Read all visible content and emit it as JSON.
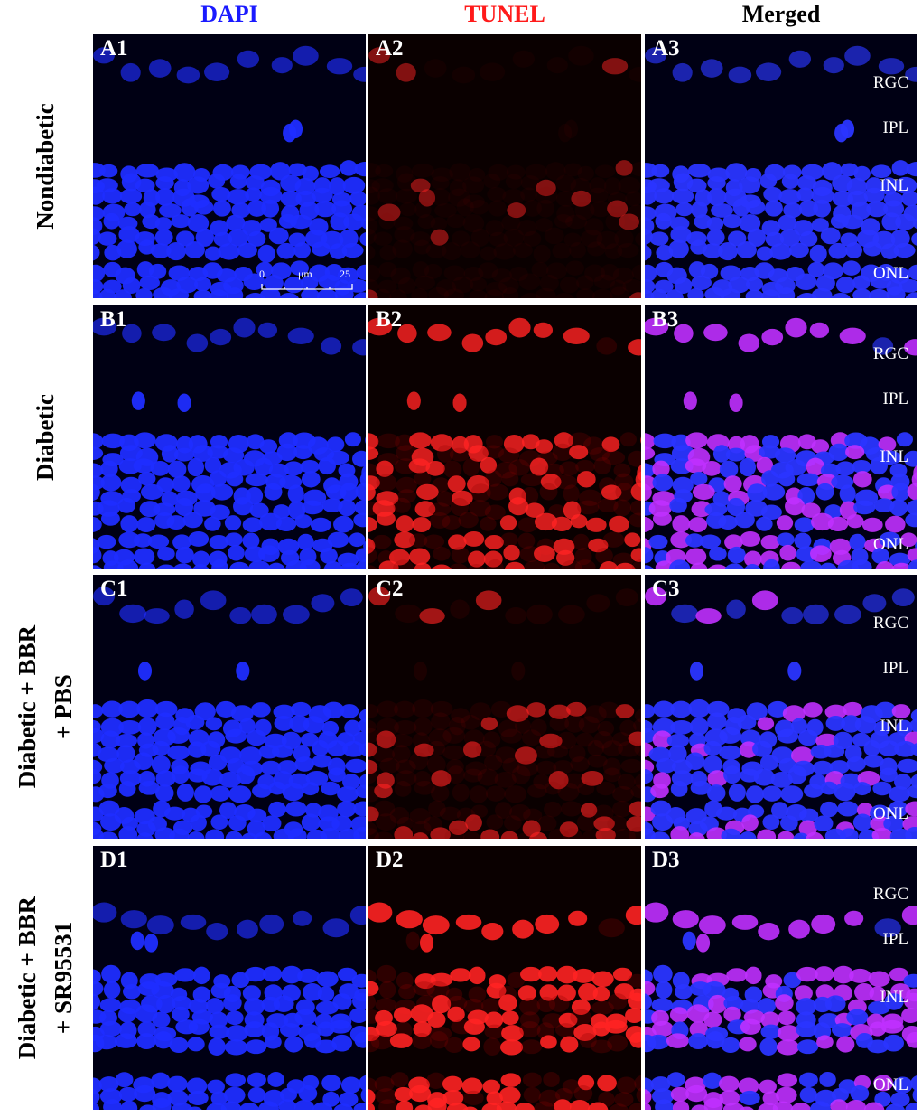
{
  "columns": [
    {
      "label": "DAPI",
      "color": "#1a1aff"
    },
    {
      "label": "TUNEL",
      "color": "#ff1a1a"
    },
    {
      "label": "Merged",
      "color": "#000000"
    }
  ],
  "rows": [
    {
      "label_lines": [
        "Nondiabetic"
      ],
      "panels": [
        "A1",
        "A2",
        "A3"
      ],
      "tunel_level": 0.08
    },
    {
      "label_lines": [
        "Diabetic"
      ],
      "panels": [
        "B1",
        "B2",
        "B3"
      ],
      "tunel_level": 0.75
    },
    {
      "label_lines": [
        "Diabetic + BBR",
        "+ PBS"
      ],
      "panels": [
        "C1",
        "C2",
        "C3"
      ],
      "tunel_level": 0.35
    },
    {
      "label_lines": [
        "Diabetic + BBR",
        "+ SR95531"
      ],
      "panels": [
        "D1",
        "D2",
        "D3"
      ],
      "tunel_level": 0.9
    }
  ],
  "layers": [
    "RGC",
    "IPL",
    "INL",
    "ONL"
  ],
  "scalebar": {
    "start": "0",
    "unit": "μm",
    "end": "25"
  }
}
